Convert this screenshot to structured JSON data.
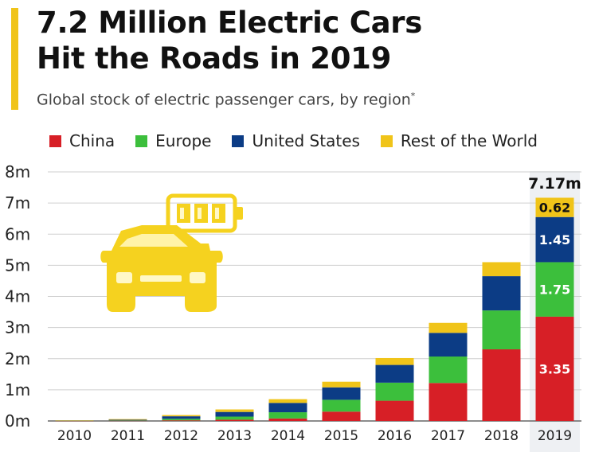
{
  "header": {
    "title_line1": "7.2 Million Electric Cars",
    "title_line2": "Hit the Roads in 2019",
    "subtitle": "Global stock of electric passenger cars, by region",
    "subtitle_mark": "*"
  },
  "colors": {
    "China": "#d71f26",
    "Europe": "#3cbf3c",
    "United States": "#0c3c85",
    "Rest of the World": "#f0c419",
    "grid": "#cfcfcf",
    "highlight": "#eef0f3"
  },
  "icons": [
    "electric-car-icon",
    "battery-icon"
  ],
  "chart_data": {
    "type": "bar",
    "stacked": true,
    "categories": [
      "2010",
      "2011",
      "2012",
      "2013",
      "2014",
      "2015",
      "2016",
      "2017",
      "2018",
      "2019"
    ],
    "series": [
      {
        "name": "China",
        "values": [
          0.005,
          0.01,
          0.02,
          0.04,
          0.08,
          0.3,
          0.65,
          1.22,
          2.3,
          3.35
        ]
      },
      {
        "name": "Europe",
        "values": [
          0.005,
          0.01,
          0.05,
          0.1,
          0.2,
          0.38,
          0.58,
          0.85,
          1.25,
          1.75
        ]
      },
      {
        "name": "United States",
        "values": [
          0.005,
          0.02,
          0.08,
          0.15,
          0.3,
          0.4,
          0.57,
          0.76,
          1.1,
          1.45
        ]
      },
      {
        "name": "Rest of the World",
        "values": [
          0.002,
          0.02,
          0.04,
          0.08,
          0.12,
          0.18,
          0.22,
          0.32,
          0.45,
          0.62
        ]
      }
    ],
    "y_ticks": [
      "0m",
      "1m",
      "2m",
      "3m",
      "4m",
      "5m",
      "6m",
      "7m",
      "8m"
    ],
    "ylim": [
      0,
      8
    ],
    "highlight_category": "2019",
    "data_labels": {
      "China": "3.35",
      "Europe": "1.75",
      "United States": "1.45",
      "Rest of the World": "0.62"
    },
    "total_label": "7.17m",
    "grid": true,
    "legend_position": "top"
  }
}
